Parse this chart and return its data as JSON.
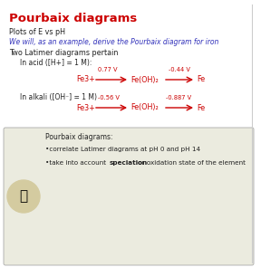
{
  "title": "Pourbaix diagrams",
  "title_color": "#cc0000",
  "line1": "Plots of E vs pH",
  "line1_color": "#222222",
  "line2": "We will, as an example, derive the Pourbaix diagram for iron",
  "line2_color": "#3333bb",
  "line3": "Two Latimer diagrams pertain",
  "line3_color": "#222222",
  "acid_label": "In acid ([H+] = 1 M):",
  "acid_color": "#222222",
  "acid_species_0": "Fe3+",
  "acid_species_1": "Fe(OH)₂",
  "acid_species_2": "Fe",
  "acid_voltage_0": "0.77 V",
  "acid_voltage_1": "-0.44 V",
  "alkali_label": "In alkali ([OH⁻] = 1 M)",
  "alkali_color": "#222222",
  "alkali_species_0": "Fe3+",
  "alkali_species_1": "Fe(OH)₂",
  "alkali_species_2": "Fe",
  "alkali_voltage_0": "-0.56 V",
  "alkali_voltage_1": "-0.887 V",
  "species_color": "#cc0000",
  "voltage_color": "#cc0000",
  "arrow_color": "#cc0000",
  "footer_title": "Pourbaix diagrams:",
  "footer_bullet1": "•correlate Latimer diagrams at pH 0 and pH 14",
  "footer_bullet2_pre": "•take into account ",
  "footer_bold": "speciation",
  "footer_rest": " or oxidation state of the element",
  "footer_color": "#222222",
  "box_bg": "#ebebdf",
  "box_edge": "#aaaaaa",
  "slide_bg": "#ffffff"
}
